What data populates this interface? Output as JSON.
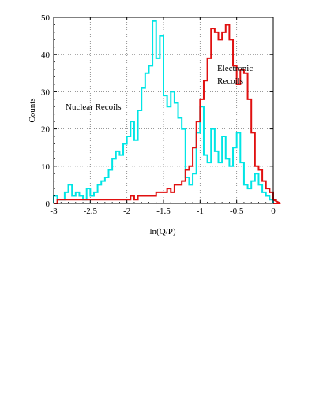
{
  "chart_data": {
    "type": "histogram",
    "xlabel": "ln(Q/P)",
    "ylabel": "Counts",
    "xlim": [
      -3,
      0
    ],
    "ylim": [
      0,
      50
    ],
    "xticks": [
      -3,
      -2.5,
      -2,
      -1.5,
      -1,
      -0.5,
      0
    ],
    "xtick_labels": [
      "-3",
      "-2.5",
      "-2",
      "-1.5",
      "-1",
      "-0.5",
      "0"
    ],
    "yticks": [
      0,
      10,
      20,
      30,
      40,
      50
    ],
    "ytick_labels": [
      "0",
      "10",
      "20",
      "30",
      "40",
      "50"
    ],
    "grid": true,
    "bin_width": 0.05,
    "series": [
      {
        "name": "Nuclear Recoils",
        "color": "#00e5e5",
        "x_start": -3.0,
        "values": [
          2,
          1,
          1,
          3,
          5,
          2,
          3,
          2,
          1,
          4,
          2,
          3,
          5,
          6,
          7,
          9,
          12,
          14,
          13,
          16,
          18,
          22,
          17,
          25,
          31,
          35,
          37,
          49,
          39,
          45,
          29,
          26,
          30,
          27,
          23,
          20,
          7,
          5,
          8,
          19,
          26,
          13,
          11,
          20,
          14,
          11,
          18,
          12,
          10,
          15,
          19,
          11,
          5,
          4,
          6,
          8,
          5,
          3,
          2,
          1,
          1,
          1
        ]
      },
      {
        "name": "Electronic Recoils",
        "color": "#e01010",
        "x_start": -3.0,
        "values": [
          0,
          1,
          1,
          1,
          1,
          1,
          1,
          1,
          1,
          1,
          1,
          1,
          1,
          1,
          1,
          1,
          1,
          1,
          1,
          1,
          1,
          2,
          1,
          2,
          2,
          2,
          2,
          2,
          3,
          3,
          3,
          4,
          3,
          5,
          5,
          6,
          9,
          10,
          15,
          22,
          28,
          33,
          39,
          47,
          46,
          44,
          46,
          48,
          44,
          37,
          32,
          36,
          35,
          28,
          19,
          10,
          9,
          6,
          4,
          3,
          1,
          1,
          0
        ]
      }
    ],
    "annotations": [
      {
        "text": "Nuclear Recoils",
        "x": -2.55,
        "y": 25
      },
      {
        "text": "Electronic",
        "x": -0.86,
        "y": 37
      },
      {
        "text": "Recoils",
        "x": -0.86,
        "y": 34
      }
    ]
  }
}
